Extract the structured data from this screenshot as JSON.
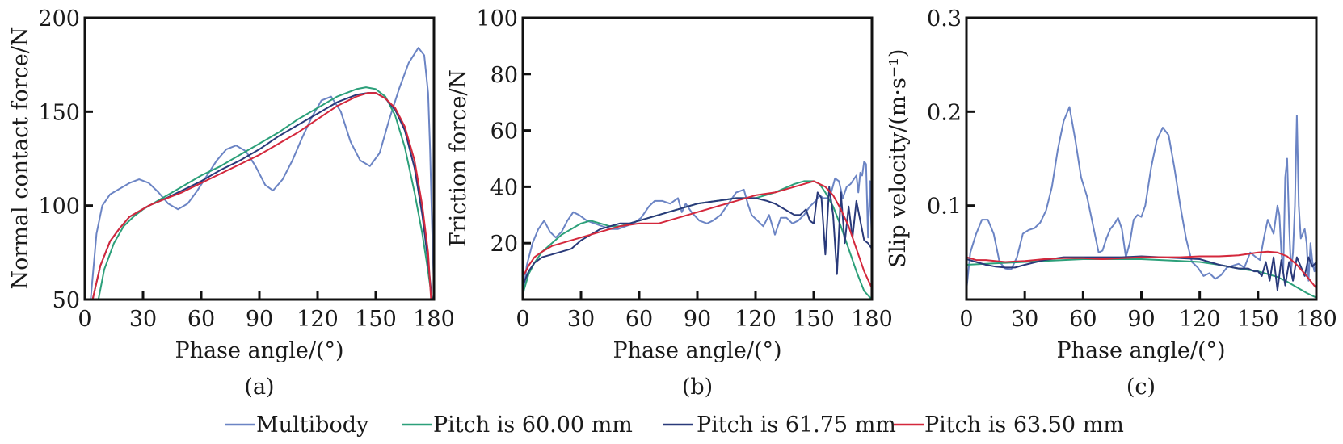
{
  "legend": {
    "position": "bottom-center",
    "items": [
      {
        "name": "Multibody",
        "color": "#6b84c4"
      },
      {
        "name": "Pitch is 60.00 mm",
        "color": "#2ca07a"
      },
      {
        "name": "Pitch is 61.75 mm",
        "color": "#2a3a7a"
      },
      {
        "name": "Pitch is 63.50 mm",
        "color": "#d4283c"
      }
    ]
  },
  "chart_data": [
    {
      "type": "line",
      "caption": "(a)",
      "title": "",
      "xlabel": "Phase angle/(°)",
      "ylabel": "Normal contact force/N",
      "xlim": [
        0,
        180
      ],
      "ylim": [
        50,
        200
      ],
      "xticks": [
        0,
        30,
        60,
        90,
        120,
        150,
        180
      ],
      "yticks": [
        50,
        100,
        150,
        200
      ],
      "grid": false,
      "series": [
        {
          "name": "Multibody",
          "x": [
            3,
            6,
            9,
            13,
            18,
            23,
            28,
            33,
            38,
            43,
            48,
            53,
            58,
            63,
            68,
            73,
            78,
            83,
            88,
            93,
            97,
            102,
            107,
            112,
            117,
            122,
            127,
            132,
            137,
            142,
            147,
            152,
            157,
            162,
            167,
            172,
            175,
            177,
            178,
            179,
            180
          ],
          "y": [
            50,
            85,
            100,
            106,
            109,
            112,
            114,
            112,
            107,
            101,
            98,
            101,
            108,
            116,
            124,
            130,
            132,
            129,
            121,
            111,
            108,
            114,
            124,
            136,
            147,
            156,
            158,
            150,
            134,
            124,
            121,
            128,
            146,
            162,
            176,
            184,
            180,
            160,
            130,
            90,
            55
          ]
        },
        {
          "name": "Pitch is 60.00 mm",
          "x": [
            7,
            10,
            15,
            20,
            25,
            30,
            40,
            50,
            60,
            70,
            80,
            90,
            100,
            110,
            120,
            130,
            140,
            145,
            150,
            155,
            160,
            165,
            170,
            174,
            177,
            179
          ],
          "y": [
            50,
            66,
            80,
            89,
            94,
            98,
            104,
            110,
            116,
            121,
            127,
            133,
            139,
            146,
            152,
            158,
            162,
            163,
            162,
            158,
            148,
            131,
            107,
            85,
            65,
            50
          ]
        },
        {
          "name": "Pitch is 61.75 mm",
          "x": [
            4,
            8,
            13,
            18,
            23,
            28,
            33,
            40,
            50,
            60,
            70,
            80,
            90,
            100,
            110,
            120,
            130,
            140,
            146,
            150,
            155,
            160,
            165,
            170,
            174,
            177,
            179
          ],
          "y": [
            50,
            68,
            81,
            88,
            94,
            97,
            100,
            103,
            108,
            113,
            119,
            124,
            130,
            137,
            143,
            149,
            155,
            159,
            160,
            160,
            157,
            151,
            140,
            120,
            95,
            70,
            50
          ]
        },
        {
          "name": "Pitch is 63.50 mm",
          "x": [
            4,
            8,
            13,
            18,
            23,
            28,
            33,
            40,
            50,
            60,
            70,
            80,
            90,
            100,
            110,
            120,
            130,
            140,
            146,
            150,
            155,
            160,
            165,
            170,
            174,
            177,
            178.5
          ],
          "y": [
            50,
            68,
            81,
            88,
            94,
            97,
            100,
            103,
            107,
            112,
            117,
            122,
            127,
            133,
            139,
            146,
            153,
            158,
            160,
            160,
            157,
            152,
            142,
            124,
            100,
            75,
            50
          ]
        }
      ]
    },
    {
      "type": "line",
      "caption": "(b)",
      "title": "",
      "xlabel": "Phase angle/(°)",
      "ylabel": "Friction force/N",
      "xlim": [
        0,
        180
      ],
      "ylim": [
        0,
        100
      ],
      "xticks": [
        0,
        30,
        60,
        90,
        120,
        150,
        180
      ],
      "yticks": [
        20,
        40,
        60,
        80,
        100
      ],
      "grid": false,
      "series": [
        {
          "name": "Multibody",
          "x": [
            0,
            2,
            5,
            8,
            11,
            14,
            17,
            20,
            23,
            26,
            29,
            33,
            37,
            41,
            45,
            49,
            53,
            57,
            61,
            65,
            68,
            72,
            76,
            80,
            82,
            84,
            87,
            91,
            95,
            98,
            102,
            106,
            110,
            114,
            116,
            118,
            121,
            124,
            127,
            130,
            133,
            136,
            139,
            142,
            145,
            148,
            151,
            153,
            155,
            157,
            159,
            161,
            163,
            165,
            167,
            169,
            171,
            172,
            173,
            174,
            175,
            176,
            177,
            178,
            179,
            180
          ],
          "y": [
            0,
            12,
            20,
            25,
            28,
            24,
            22,
            24,
            28,
            31,
            30,
            28,
            27,
            26,
            25,
            25,
            26,
            27,
            29,
            33,
            35,
            35,
            34,
            36,
            31,
            34,
            31,
            28,
            27,
            28,
            30,
            34,
            38,
            39,
            34,
            30,
            28,
            26,
            30,
            23,
            29,
            29,
            27,
            28,
            30,
            33,
            35,
            37,
            36,
            36,
            38,
            43,
            42,
            36,
            40,
            41,
            43,
            44,
            38,
            45,
            44,
            49,
            48,
            22,
            42,
            20
          ]
        },
        {
          "name": "Pitch is 60.00 mm",
          "x": [
            0,
            3,
            6,
            10,
            15,
            20,
            25,
            30,
            35,
            40,
            45,
            50,
            55,
            60,
            70,
            80,
            90,
            100,
            110,
            120,
            130,
            140,
            145,
            150,
            153,
            156,
            160,
            164,
            168,
            172,
            176,
            180
          ],
          "y": [
            2,
            9,
            13,
            17,
            20,
            23,
            25,
            27,
            28,
            27,
            26,
            26,
            27,
            28,
            30,
            32,
            34,
            35,
            36,
            36,
            38,
            41,
            42,
            42,
            41,
            38,
            33,
            26,
            18,
            10,
            3,
            0
          ]
        },
        {
          "name": "Pitch is 61.75 mm",
          "x": [
            0,
            3,
            6,
            10,
            15,
            20,
            25,
            30,
            35,
            40,
            45,
            50,
            55,
            60,
            70,
            80,
            90,
            100,
            110,
            120,
            126,
            130,
            135,
            140,
            143,
            146,
            148,
            150,
            152,
            154,
            156,
            158,
            160,
            162,
            164,
            166,
            168,
            170,
            172,
            174,
            176,
            178,
            180
          ],
          "y": [
            5,
            10,
            13,
            15,
            16,
            17,
            18,
            21,
            23,
            25,
            26,
            27,
            27,
            28,
            30,
            32,
            34,
            35,
            36,
            36,
            35,
            34,
            32,
            30,
            30,
            32,
            28,
            27,
            38,
            36,
            16,
            40,
            30,
            9,
            38,
            20,
            33,
            22,
            35,
            28,
            21,
            20,
            18
          ]
        },
        {
          "name": "Pitch is 63.50 mm",
          "x": [
            0,
            3,
            6,
            10,
            15,
            20,
            25,
            30,
            35,
            40,
            50,
            60,
            70,
            80,
            90,
            100,
            110,
            120,
            130,
            140,
            145,
            150,
            153,
            156,
            160,
            164,
            168,
            172,
            176,
            180
          ],
          "y": [
            8,
            12,
            15,
            17,
            19,
            20,
            21,
            22,
            23,
            24,
            26,
            27,
            27,
            29,
            31,
            33,
            35,
            37,
            38,
            40,
            41,
            42,
            41,
            40,
            37,
            32,
            26,
            18,
            10,
            4
          ]
        }
      ]
    },
    {
      "type": "line",
      "caption": "(c)",
      "title": "",
      "xlabel": "Phase angle/(°)",
      "ylabel": "Slip velocity/(m·s⁻¹)",
      "xlim": [
        0,
        180
      ],
      "ylim": [
        0,
        0.3
      ],
      "xticks": [
        0,
        30,
        60,
        90,
        120,
        150,
        180
      ],
      "yticks": [
        0.1,
        0.2,
        0.3
      ],
      "grid": false,
      "series": [
        {
          "name": "Multibody",
          "x": [
            0,
            2,
            5,
            8,
            11,
            14,
            17,
            20,
            23,
            26,
            29,
            32,
            35,
            38,
            41,
            44,
            47,
            50,
            53,
            56,
            59,
            62,
            65,
            68,
            70,
            72,
            74,
            76,
            78,
            80,
            82,
            84,
            86,
            88,
            90,
            92,
            95,
            98,
            101,
            104,
            107,
            110,
            113,
            116,
            119,
            122,
            125,
            128,
            131,
            134,
            137,
            140,
            143,
            146,
            149,
            151,
            153,
            155,
            157,
            158,
            160,
            161,
            162,
            163,
            164,
            165,
            166,
            167,
            168,
            169,
            170,
            171,
            172,
            173,
            174,
            175,
            176,
            177,
            178,
            179,
            180
          ],
          "y": [
            0.01,
            0.05,
            0.07,
            0.085,
            0.085,
            0.07,
            0.04,
            0.033,
            0.032,
            0.045,
            0.07,
            0.074,
            0.076,
            0.082,
            0.095,
            0.12,
            0.16,
            0.19,
            0.205,
            0.17,
            0.13,
            0.11,
            0.08,
            0.05,
            0.052,
            0.065,
            0.075,
            0.08,
            0.087,
            0.075,
            0.045,
            0.06,
            0.085,
            0.09,
            0.088,
            0.1,
            0.14,
            0.17,
            0.183,
            0.175,
            0.14,
            0.1,
            0.065,
            0.04,
            0.034,
            0.025,
            0.028,
            0.022,
            0.026,
            0.034,
            0.036,
            0.038,
            0.034,
            0.05,
            0.045,
            0.042,
            0.065,
            0.085,
            0.075,
            0.07,
            0.1,
            0.09,
            0.05,
            0.03,
            0.13,
            0.15,
            0.08,
            0.03,
            0.05,
            0.1,
            0.196,
            0.1,
            0.065,
            0.07,
            0.075,
            0.06,
            0.02,
            0.06,
            0.04,
            0.03,
            0.04
          ]
        },
        {
          "name": "Pitch is 60.00 mm",
          "x": [
            0,
            10,
            20,
            30,
            40,
            50,
            60,
            70,
            80,
            90,
            100,
            110,
            120,
            130,
            140,
            150,
            155,
            160,
            165,
            170,
            175,
            180
          ],
          "y": [
            0.037,
            0.038,
            0.039,
            0.04,
            0.041,
            0.042,
            0.043,
            0.043,
            0.043,
            0.043,
            0.042,
            0.041,
            0.04,
            0.037,
            0.033,
            0.03,
            0.027,
            0.024,
            0.019,
            0.013,
            0.007,
            0.002
          ]
        },
        {
          "name": "Pitch is 61.75 mm",
          "x": [
            0,
            5,
            10,
            15,
            20,
            25,
            30,
            40,
            50,
            60,
            70,
            80,
            90,
            100,
            110,
            120,
            130,
            140,
            145,
            148,
            150,
            152,
            154,
            156,
            158,
            160,
            162,
            164,
            166,
            168,
            170,
            172,
            174,
            176,
            178,
            180
          ],
          "y": [
            0.043,
            0.04,
            0.037,
            0.035,
            0.034,
            0.034,
            0.037,
            0.042,
            0.045,
            0.045,
            0.045,
            0.045,
            0.046,
            0.045,
            0.044,
            0.043,
            0.037,
            0.033,
            0.033,
            0.03,
            0.03,
            0.025,
            0.04,
            0.02,
            0.045,
            0.01,
            0.042,
            0.015,
            0.04,
            0.02,
            0.045,
            0.035,
            0.025,
            0.045,
            0.035,
            0.04
          ]
        },
        {
          "name": "Pitch is 63.50 mm",
          "x": [
            0,
            5,
            10,
            20,
            30,
            40,
            50,
            60,
            70,
            80,
            90,
            100,
            110,
            120,
            130,
            140,
            150,
            155,
            160,
            165,
            170,
            175,
            180
          ],
          "y": [
            0.045,
            0.042,
            0.042,
            0.04,
            0.041,
            0.043,
            0.044,
            0.044,
            0.043,
            0.044,
            0.045,
            0.045,
            0.045,
            0.046,
            0.046,
            0.047,
            0.05,
            0.051,
            0.05,
            0.046,
            0.037,
            0.025,
            0.012
          ]
        }
      ]
    }
  ]
}
